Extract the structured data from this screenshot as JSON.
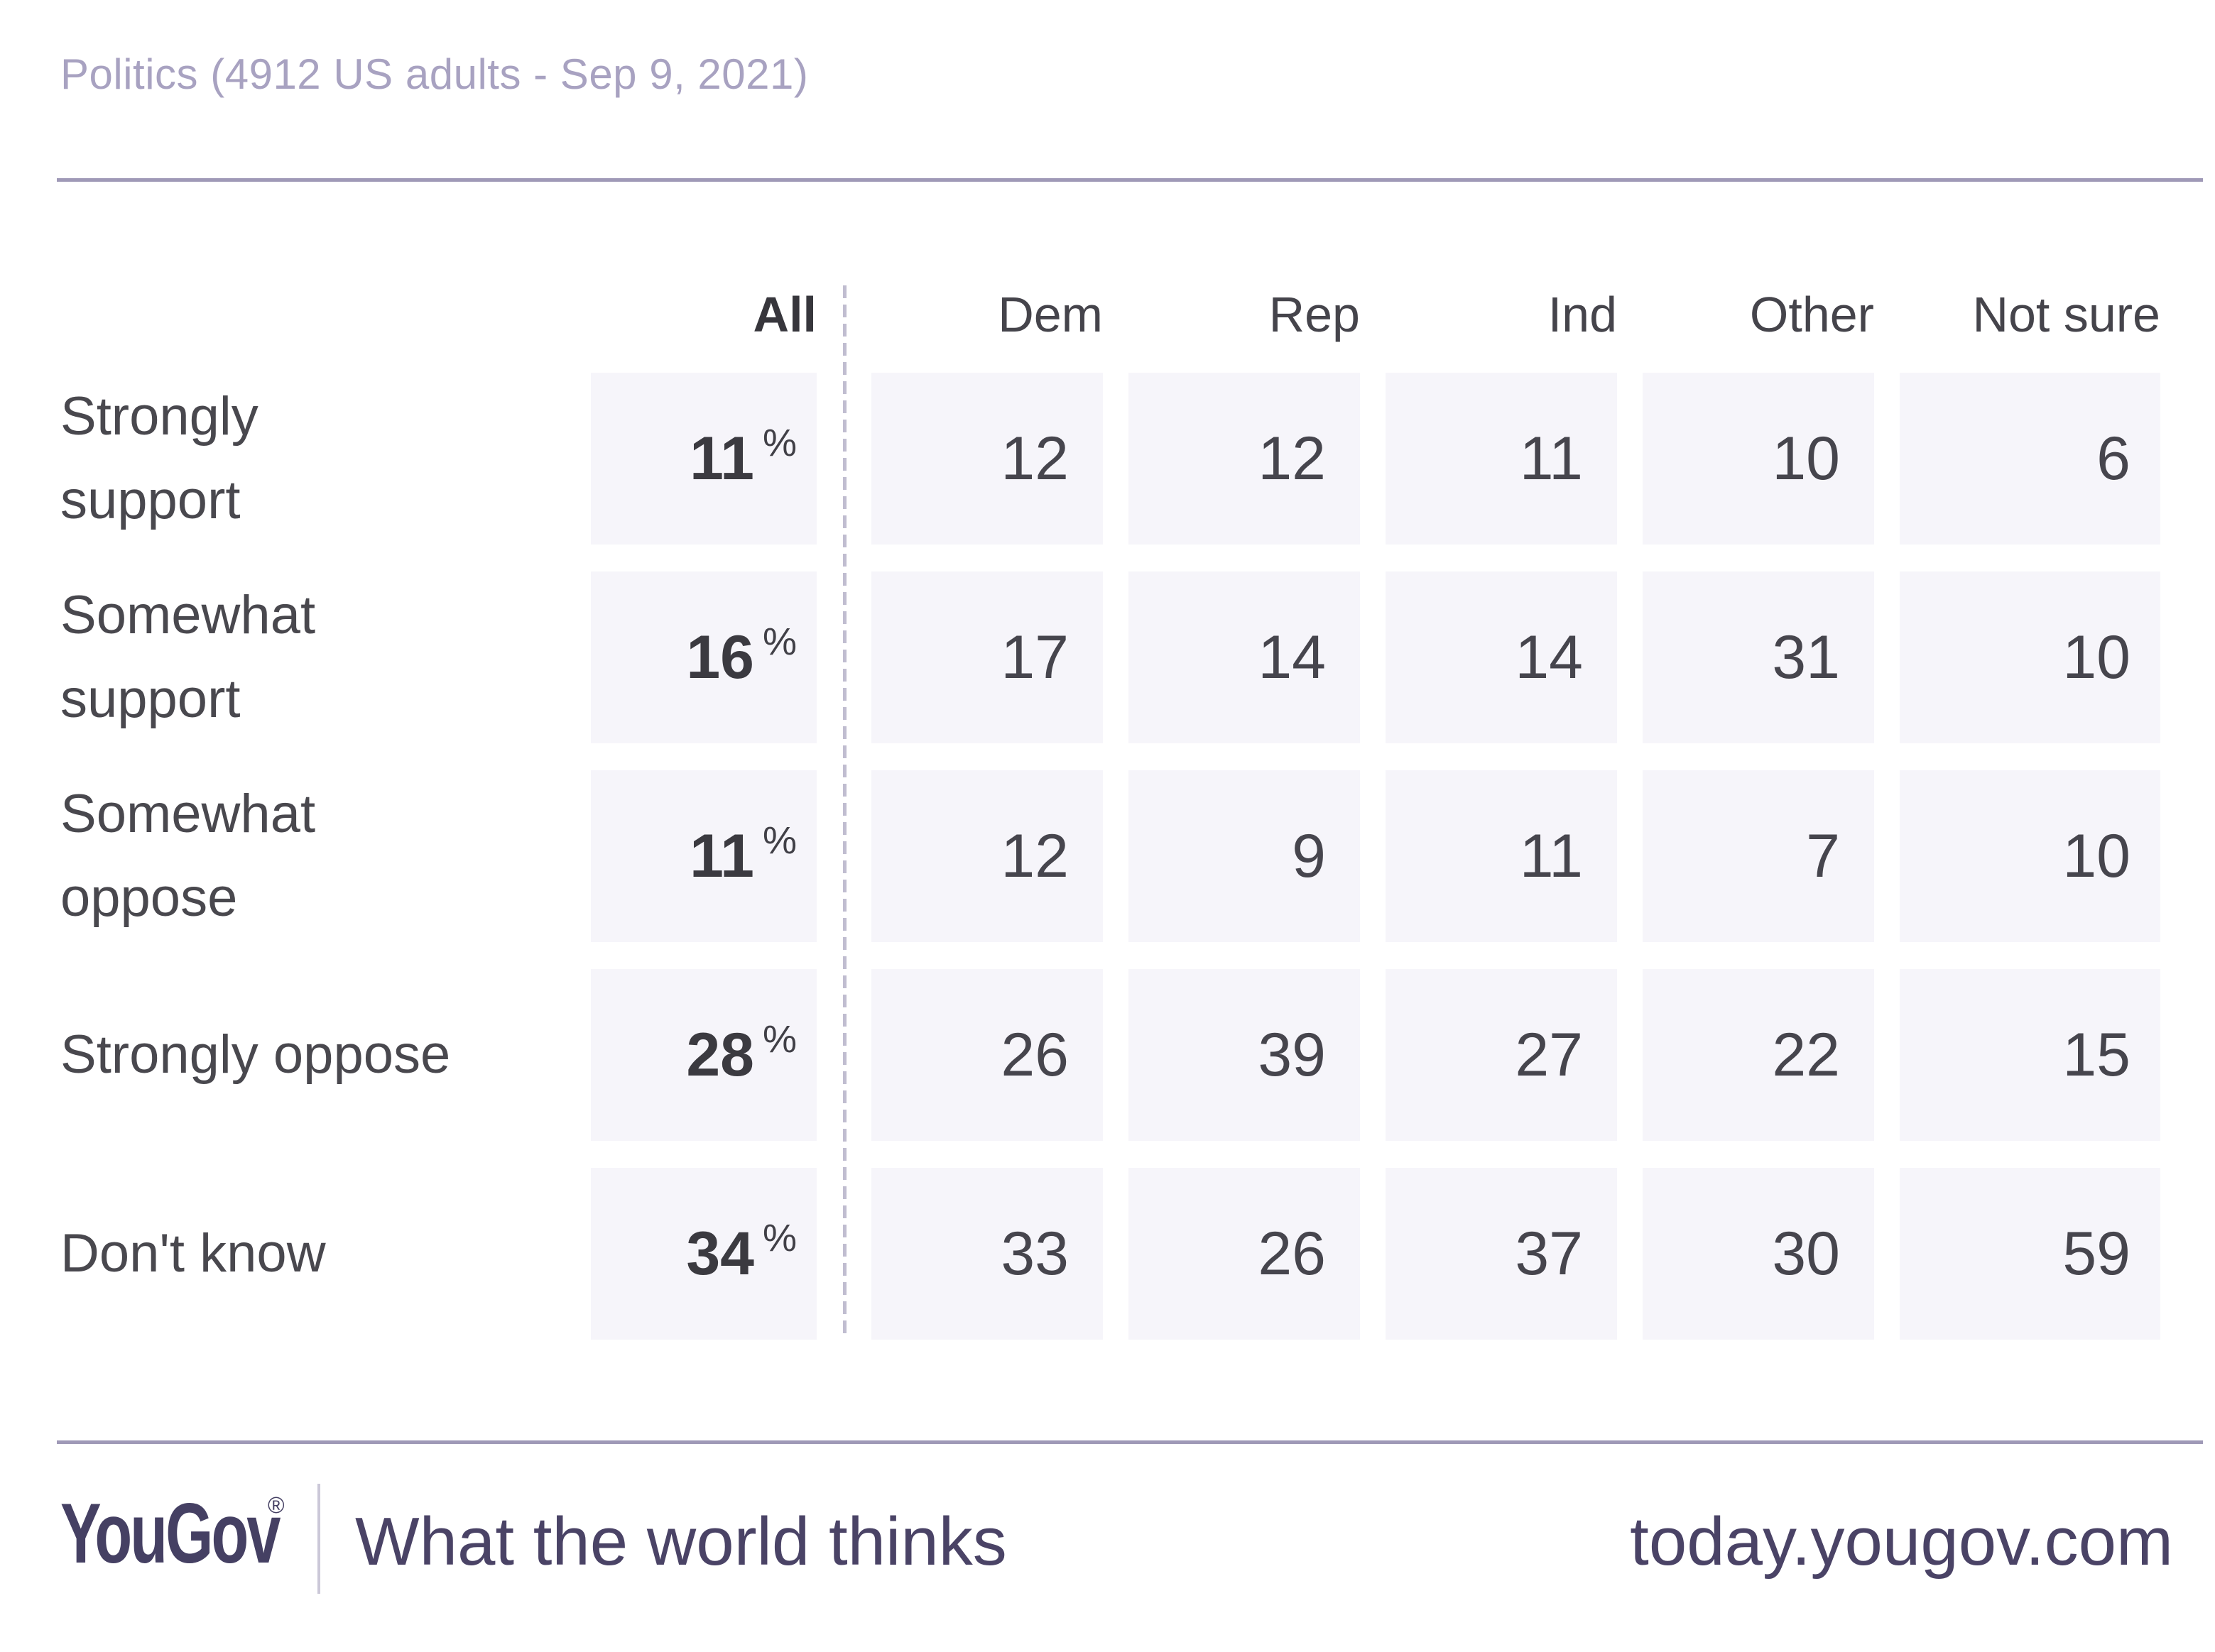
{
  "title": "Politics (4912 US adults - Sep 9, 2021)",
  "table": {
    "columns": [
      "All",
      "Dem",
      "Rep",
      "Ind",
      "Other",
      "Not sure"
    ],
    "percent_sign": "%",
    "rows": [
      {
        "label": "Strongly support",
        "label_lines": [
          "Strongly",
          "support"
        ],
        "all": "11",
        "values": [
          "12",
          "12",
          "11",
          "10",
          "6"
        ]
      },
      {
        "label": "Somewhat support",
        "label_lines": [
          "Somewhat",
          "support"
        ],
        "all": "16",
        "values": [
          "17",
          "14",
          "14",
          "31",
          "10"
        ]
      },
      {
        "label": "Somewhat oppose",
        "label_lines": [
          "Somewhat",
          "oppose"
        ],
        "all": "11",
        "values": [
          "12",
          "9",
          "11",
          "7",
          "10"
        ]
      },
      {
        "label": "Strongly oppose",
        "label_lines": [
          "Strongly oppose"
        ],
        "all": "28",
        "values": [
          "26",
          "39",
          "27",
          "22",
          "15"
        ]
      },
      {
        "label": "Don't know",
        "label_lines": [
          "Don't know"
        ],
        "all": "34",
        "values": [
          "33",
          "26",
          "37",
          "30",
          "59"
        ]
      }
    ]
  },
  "chart_data": {
    "type": "table",
    "title": "Politics (4912 US adults - Sep 9, 2021)",
    "columns": [
      "All",
      "Dem",
      "Rep",
      "Ind",
      "Other",
      "Not sure"
    ],
    "rows": [
      "Strongly support",
      "Somewhat support",
      "Somewhat oppose",
      "Strongly oppose",
      "Don't know"
    ],
    "values_percent": [
      [
        11,
        12,
        12,
        11,
        10,
        6
      ],
      [
        16,
        17,
        14,
        14,
        31,
        10
      ],
      [
        11,
        12,
        9,
        11,
        7,
        10
      ],
      [
        28,
        26,
        39,
        27,
        22,
        15
      ],
      [
        34,
        33,
        26,
        37,
        30,
        59
      ]
    ],
    "notes": "All column values shown with % sign; breakdown columns shown as plain numbers"
  },
  "footer": {
    "logo": "YouGov",
    "registered_mark": "®",
    "tagline": "What the world thinks",
    "url": "today.yougov.com"
  },
  "colors": {
    "title_text": "#a8a2c1",
    "rule": "#9f99b7",
    "cell_background": "#f6f5fa",
    "label_text": "#49484e",
    "header_text": "#45444b",
    "number_text": "#46454d",
    "number_bold_text": "#3b3a40",
    "dashed_divider": "#c0bdd0",
    "footer_purple": "#454063"
  }
}
